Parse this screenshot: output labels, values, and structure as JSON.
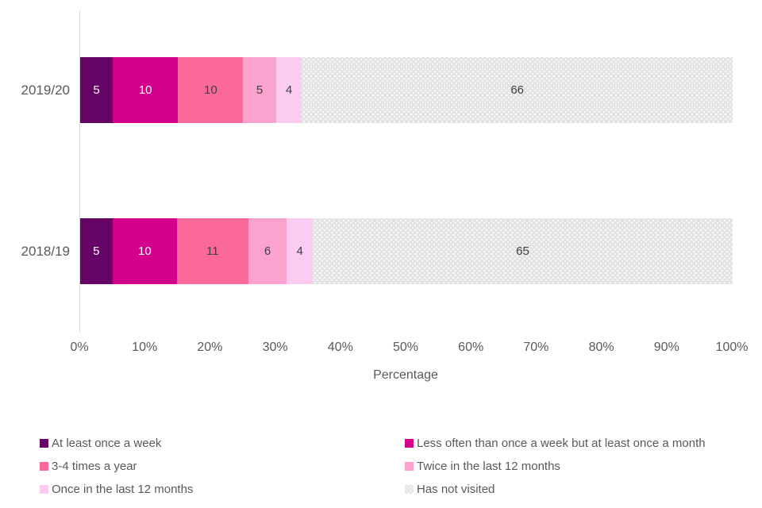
{
  "chart_data": {
    "type": "bar",
    "orientation": "horizontal",
    "stacked": true,
    "title": "",
    "xlabel": "Percentage",
    "ylabel": "",
    "xlim": [
      0,
      100
    ],
    "grid": false,
    "legend_position": "bottom",
    "categories": [
      "2019/20",
      "2018/19"
    ],
    "x_ticks": [
      "0%",
      "10%",
      "20%",
      "30%",
      "40%",
      "50%",
      "60%",
      "70%",
      "80%",
      "90%",
      "100%"
    ],
    "series": [
      {
        "name": "At least once a week",
        "color": "#650466",
        "label_color": "#ffffff",
        "pattern": "solid",
        "values": [
          5,
          5
        ]
      },
      {
        "name": "Less often than once a week but at least once a month",
        "color": "#d3008c",
        "label_color": "#ffffff",
        "pattern": "solid",
        "values": [
          10,
          10
        ]
      },
      {
        "name": "3-4 times a year",
        "color": "#fb6998",
        "label_color": "#404040",
        "pattern": "solid",
        "values": [
          10,
          11
        ]
      },
      {
        "name": "Twice in the last 12 months",
        "color": "#fca2cf",
        "label_color": "#404040",
        "pattern": "solid",
        "values": [
          5,
          6
        ]
      },
      {
        "name": "Once in the last 12 months",
        "color": "#fccbf2",
        "label_color": "#404040",
        "pattern": "solid",
        "values": [
          4,
          4
        ]
      },
      {
        "name": "Has not visited",
        "color": "#e3e3e3",
        "label_color": "#404040",
        "pattern": "dots",
        "values": [
          66,
          65
        ]
      }
    ]
  },
  "colors": {
    "axis_line": "#d9d9d9",
    "axis_text": "#595959",
    "background": "#ffffff"
  }
}
